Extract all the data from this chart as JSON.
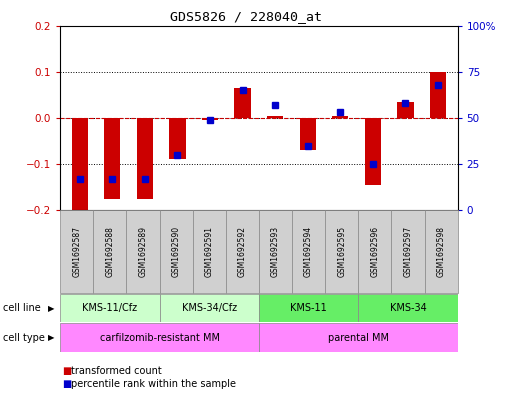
{
  "title": "GDS5826 / 228040_at",
  "samples": [
    "GSM1692587",
    "GSM1692588",
    "GSM1692589",
    "GSM1692590",
    "GSM1692591",
    "GSM1692592",
    "GSM1692593",
    "GSM1692594",
    "GSM1692595",
    "GSM1692596",
    "GSM1692597",
    "GSM1692598"
  ],
  "red_values": [
    -0.2,
    -0.175,
    -0.175,
    -0.09,
    -0.005,
    0.065,
    0.005,
    -0.07,
    0.005,
    -0.145,
    0.035,
    0.1
  ],
  "blue_values_pct": [
    17,
    17,
    17,
    30,
    49,
    65,
    57,
    35,
    53,
    25,
    58,
    68
  ],
  "ylim_left": [
    -0.2,
    0.2
  ],
  "ylim_right": [
    0,
    100
  ],
  "yticks_left": [
    -0.2,
    -0.1,
    0.0,
    0.1,
    0.2
  ],
  "yticks_right": [
    0,
    25,
    50,
    75,
    100
  ],
  "ytick_right_labels": [
    "0",
    "25",
    "50",
    "75",
    "100%"
  ],
  "cell_line_groups": [
    {
      "label": "KMS-11/Cfz",
      "start": 0,
      "end": 3,
      "color": "#ccffcc"
    },
    {
      "label": "KMS-34/Cfz",
      "start": 3,
      "end": 6,
      "color": "#ccffcc"
    },
    {
      "label": "KMS-11",
      "start": 6,
      "end": 9,
      "color": "#66ee66"
    },
    {
      "label": "KMS-34",
      "start": 9,
      "end": 12,
      "color": "#66ee66"
    }
  ],
  "cell_type_groups": [
    {
      "label": "carfilzomib-resistant MM",
      "start": 0,
      "end": 6,
      "color": "#ff88ff"
    },
    {
      "label": "parental MM",
      "start": 6,
      "end": 12,
      "color": "#ff88ff"
    }
  ],
  "red_color": "#cc0000",
  "blue_color": "#0000cc",
  "bar_width": 0.5,
  "blue_marker_size": 4,
  "dashed_line_color": "#cc0000",
  "grid_color": "#000000",
  "bg_color": "#ffffff",
  "sample_box_color": "#d0d0d0",
  "axis_label_color_left": "#cc0000",
  "axis_label_color_right": "#0000cc",
  "cell_line_label": "cell line",
  "cell_type_label": "cell type",
  "legend_red": "transformed count",
  "legend_blue": "percentile rank within the sample"
}
